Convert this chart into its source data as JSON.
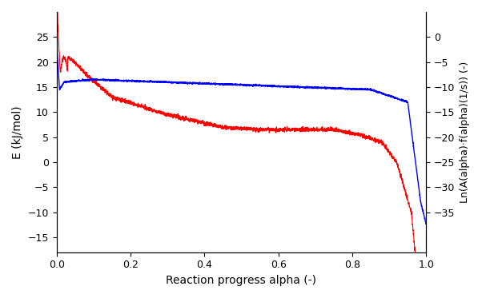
{
  "title": "",
  "xlabel": "Reaction progress alpha (-)",
  "ylabel_left": "E (kJ/mol)",
  "ylabel_right": "Ln(A(alpha)·f(alpha)(1/s)) (-)",
  "xlim": [
    0,
    1.0
  ],
  "ylim_left": [
    -18,
    30
  ],
  "ylim_right": [
    -43,
    5
  ],
  "yticks_left": [
    -15,
    -10,
    -5,
    0,
    5,
    10,
    15,
    20,
    25
  ],
  "yticks_right": [
    0,
    -5,
    -10,
    -15,
    -20,
    -25,
    -30,
    -35
  ],
  "xticks": [
    0,
    0.2,
    0.4,
    0.6,
    0.8,
    1.0
  ],
  "blue_color": "#0000ff",
  "red_color": "#ff0000",
  "background": "#ffffff",
  "figsize": [
    6.02,
    3.73
  ],
  "dpi": 100
}
